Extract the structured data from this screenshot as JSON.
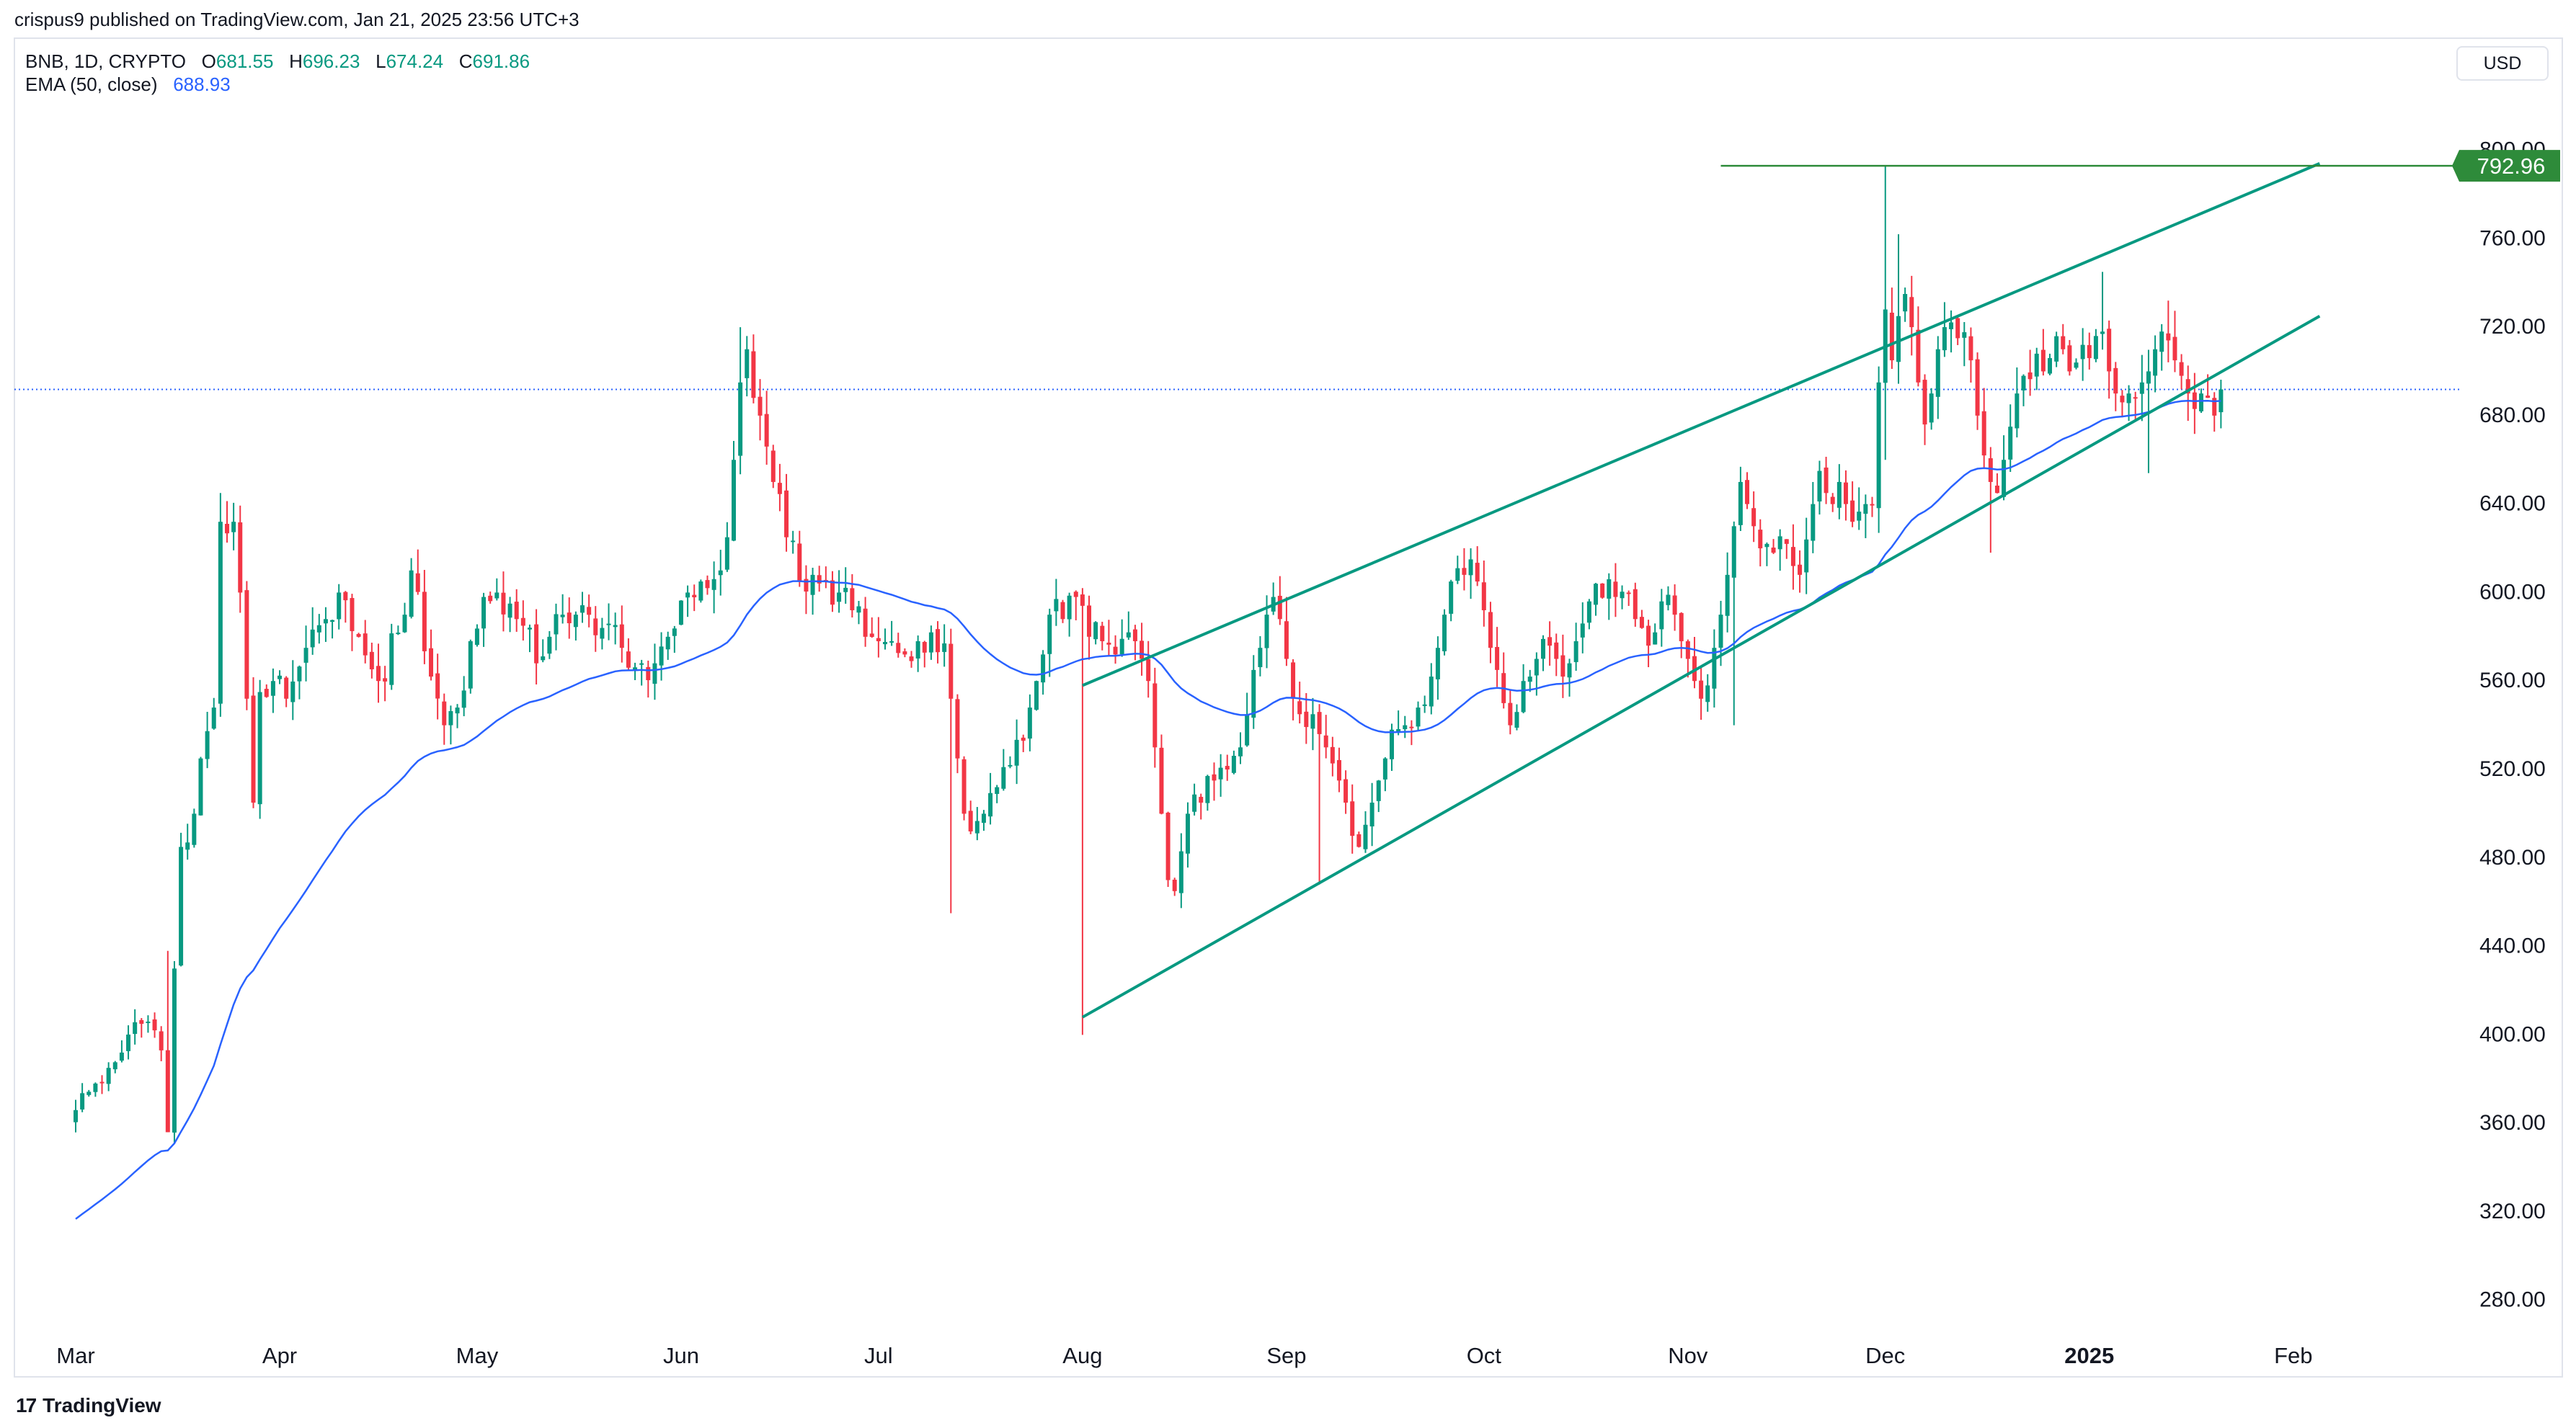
{
  "header": {
    "attribution": "crispus9 published on TradingView.com, Jan 21, 2025 23:56 UTC+3"
  },
  "legend": {
    "symbol": "BNB, 1D, CRYPTO",
    "open_label": "O",
    "open": "681.55",
    "high_label": "H",
    "high": "696.23",
    "low_label": "L",
    "low": "674.24",
    "close_label": "C",
    "close": "691.86",
    "ema_label": "EMA (50, close)",
    "ema_value": "688.93"
  },
  "currency": "USD",
  "footer": {
    "brand": "TradingView",
    "logo_glyph": "17"
  },
  "colors": {
    "up": "#089981",
    "down": "#f23645",
    "ema": "#2962ff",
    "trend": "#089981",
    "target": "#2e8b3a",
    "last_price": "#2962ff",
    "grid": "#e0e3eb"
  },
  "chart_data": {
    "type": "candlestick",
    "symbol": "BNB",
    "timeframe": "1D",
    "y_ticks": [
      280,
      320,
      360,
      400,
      440,
      480,
      520,
      560,
      600,
      640,
      680,
      720,
      760,
      800
    ],
    "y_tick_labels": [
      "280.00",
      "320.00",
      "360.00",
      "400.00",
      "440.00",
      "480.00",
      "520.00",
      "560.00",
      "600.00",
      "640.00",
      "680.00",
      "720.00",
      "760.00",
      "800.00"
    ],
    "ylim": [
      262,
      850
    ],
    "x_labels": [
      "Mar",
      "Apr",
      "May",
      "Jun",
      "Jul",
      "Aug",
      "Sep",
      "Oct",
      "Nov",
      "Dec",
      "2025",
      "Feb"
    ],
    "x_label_days": [
      0,
      31,
      61,
      92,
      122,
      153,
      184,
      214,
      245,
      275,
      306,
      337
    ],
    "first_candle_day": 0,
    "last_candle_day": 326,
    "close_anchors": [
      [
        0,
        366
      ],
      [
        3,
        378
      ],
      [
        7,
        392
      ],
      [
        10,
        405
      ],
      [
        13,
        393
      ],
      [
        14,
        356
      ],
      [
        15,
        430
      ],
      [
        16,
        485
      ],
      [
        18,
        500
      ],
      [
        19,
        525
      ],
      [
        21,
        548
      ],
      [
        22,
        632
      ],
      [
        24,
        632
      ],
      [
        25,
        600
      ],
      [
        26,
        552
      ],
      [
        27,
        505
      ],
      [
        28,
        555
      ],
      [
        30,
        560
      ],
      [
        32,
        552
      ],
      [
        35,
        575
      ],
      [
        38,
        588
      ],
      [
        40,
        600
      ],
      [
        43,
        580
      ],
      [
        46,
        560
      ],
      [
        50,
        590
      ],
      [
        51,
        610
      ],
      [
        54,
        562
      ],
      [
        56,
        540
      ],
      [
        58,
        548
      ],
      [
        60,
        578
      ],
      [
        62,
        598
      ],
      [
        64,
        600
      ],
      [
        66,
        595
      ],
      [
        67,
        588
      ],
      [
        68,
        585
      ],
      [
        70,
        568
      ],
      [
        72,
        580
      ],
      [
        74,
        590
      ],
      [
        76,
        590
      ],
      [
        80,
        584
      ],
      [
        83,
        575
      ],
      [
        86,
        568
      ],
      [
        88,
        568
      ],
      [
        90,
        580
      ],
      [
        93,
        600
      ],
      [
        95,
        605
      ],
      [
        96,
        602
      ],
      [
        98,
        610
      ],
      [
        99,
        625
      ],
      [
        100,
        660
      ],
      [
        101,
        695
      ],
      [
        102,
        710
      ],
      [
        103,
        688
      ],
      [
        104,
        680
      ],
      [
        105,
        666
      ],
      [
        106,
        650
      ],
      [
        108,
        625
      ],
      [
        110,
        605
      ],
      [
        112,
        608
      ],
      [
        114,
        605
      ],
      [
        116,
        600
      ],
      [
        118,
        592
      ],
      [
        120,
        580
      ],
      [
        122,
        578
      ],
      [
        124,
        578
      ],
      [
        126,
        572
      ],
      [
        128,
        578
      ],
      [
        130,
        582
      ],
      [
        132,
        577
      ],
      [
        133,
        552
      ],
      [
        134,
        525
      ],
      [
        135,
        500
      ],
      [
        136,
        492
      ],
      [
        138,
        500
      ],
      [
        140,
        512
      ],
      [
        142,
        522
      ],
      [
        144,
        533
      ],
      [
        145,
        548
      ],
      [
        146,
        560
      ],
      [
        147,
        572
      ],
      [
        148,
        590
      ],
      [
        150,
        588
      ],
      [
        152,
        598
      ],
      [
        153,
        594
      ],
      [
        154,
        580
      ],
      [
        156,
        578
      ],
      [
        158,
        572
      ],
      [
        160,
        582
      ],
      [
        161,
        578
      ],
      [
        162,
        570
      ],
      [
        163,
        560
      ],
      [
        164,
        530
      ],
      [
        165,
        500
      ],
      [
        166,
        470
      ],
      [
        167,
        465
      ],
      [
        168,
        483
      ],
      [
        169,
        500
      ],
      [
        171,
        505
      ],
      [
        173,
        515
      ],
      [
        175,
        520
      ],
      [
        177,
        530
      ],
      [
        178,
        545
      ],
      [
        179,
        565
      ],
      [
        180,
        575
      ],
      [
        181,
        590
      ],
      [
        182,
        598
      ],
      [
        183,
        588
      ],
      [
        184,
        570
      ],
      [
        185,
        552
      ],
      [
        186,
        545
      ],
      [
        188,
        545
      ],
      [
        189,
        536
      ],
      [
        190,
        530
      ],
      [
        192,
        515
      ],
      [
        193,
        505
      ],
      [
        194,
        490
      ],
      [
        195,
        485
      ],
      [
        196,
        495
      ],
      [
        197,
        505
      ],
      [
        198,
        515
      ],
      [
        199,
        525
      ],
      [
        200,
        538
      ],
      [
        202,
        540
      ],
      [
        204,
        548
      ],
      [
        206,
        562
      ],
      [
        207,
        575
      ],
      [
        208,
        590
      ],
      [
        209,
        605
      ],
      [
        210,
        611
      ],
      [
        211,
        608
      ],
      [
        212,
        615
      ],
      [
        213,
        605
      ],
      [
        214,
        592
      ],
      [
        215,
        575
      ],
      [
        216,
        565
      ],
      [
        217,
        550
      ],
      [
        218,
        540
      ],
      [
        219,
        546
      ],
      [
        220,
        560
      ],
      [
        222,
        570
      ],
      [
        224,
        576
      ],
      [
        225,
        570
      ],
      [
        226,
        562
      ],
      [
        227,
        568
      ],
      [
        228,
        578
      ],
      [
        229,
        586
      ],
      [
        230,
        596
      ],
      [
        231,
        604
      ],
      [
        233,
        606
      ],
      [
        234,
        598
      ],
      [
        236,
        600
      ],
      [
        237,
        588
      ],
      [
        238,
        584
      ],
      [
        239,
        576
      ],
      [
        240,
        582
      ],
      [
        241,
        596
      ],
      [
        242,
        599
      ],
      [
        243,
        590
      ],
      [
        244,
        578
      ],
      [
        245,
        570
      ],
      [
        246,
        560
      ],
      [
        247,
        552
      ],
      [
        248,
        558
      ],
      [
        249,
        575
      ],
      [
        250,
        590
      ],
      [
        251,
        608
      ],
      [
        252,
        630
      ],
      [
        253,
        650
      ],
      [
        254,
        640
      ],
      [
        255,
        630
      ],
      [
        256,
        620
      ],
      [
        257,
        622
      ],
      [
        258,
        618
      ],
      [
        260,
        622
      ],
      [
        261,
        612
      ],
      [
        262,
        608
      ],
      [
        263,
        624
      ],
      [
        264,
        640
      ],
      [
        265,
        655
      ],
      [
        266,
        645
      ],
      [
        267,
        640
      ],
      [
        268,
        650
      ],
      [
        269,
        640
      ],
      [
        270,
        632
      ],
      [
        272,
        640
      ],
      [
        273,
        640
      ],
      [
        274,
        695
      ],
      [
        275,
        728
      ],
      [
        276,
        705
      ],
      [
        277,
        725
      ],
      [
        278,
        735
      ],
      [
        279,
        720
      ],
      [
        280,
        695
      ],
      [
        281,
        676
      ],
      [
        282,
        690
      ],
      [
        283,
        710
      ],
      [
        284,
        720
      ],
      [
        286,
        715
      ],
      [
        288,
        705
      ],
      [
        289,
        680
      ],
      [
        290,
        662
      ],
      [
        291,
        650
      ],
      [
        292,
        645
      ],
      [
        293,
        660
      ],
      [
        294,
        675
      ],
      [
        295,
        690
      ],
      [
        296,
        698
      ],
      [
        298,
        708
      ],
      [
        299,
        700
      ],
      [
        300,
        706
      ],
      [
        302,
        710
      ],
      [
        303,
        700
      ],
      [
        304,
        704
      ],
      [
        305,
        712
      ],
      [
        306,
        706
      ],
      [
        307,
        716
      ],
      [
        308,
        718
      ],
      [
        309,
        700
      ],
      [
        310,
        690
      ],
      [
        311,
        686
      ],
      [
        312,
        690
      ],
      [
        314,
        695
      ],
      [
        315,
        700
      ],
      [
        316,
        710
      ],
      [
        317,
        718
      ],
      [
        318,
        714
      ],
      [
        319,
        705
      ],
      [
        320,
        698
      ],
      [
        321,
        690
      ],
      [
        322,
        683
      ],
      [
        323,
        690
      ],
      [
        324,
        688
      ],
      [
        325,
        680
      ],
      [
        326,
        692
      ]
    ],
    "pivot_candles": [
      {
        "day": 14,
        "low": 356,
        "high": 438
      },
      {
        "day": 22,
        "high": 645
      },
      {
        "day": 101,
        "high": 720
      },
      {
        "day": 102,
        "high": 716
      },
      {
        "day": 133,
        "low": 455
      },
      {
        "day": 153,
        "low": 400,
        "high": 602
      },
      {
        "day": 184,
        "high": 598
      },
      {
        "day": 189,
        "low": 468
      },
      {
        "day": 212,
        "high": 620
      },
      {
        "day": 252,
        "low": 540
      },
      {
        "day": 275,
        "high": 793,
        "low": 660
      },
      {
        "day": 277,
        "high": 762
      },
      {
        "day": 291,
        "low": 618
      },
      {
        "day": 308,
        "high": 745
      },
      {
        "day": 315,
        "low": 654
      },
      {
        "day": 318,
        "high": 732
      },
      {
        "day": 326,
        "open": 681.55,
        "high": 696.23,
        "low": 674.24,
        "close": 691.86
      }
    ],
    "ema_50": {
      "last": 688.93
    },
    "trendlines": [
      {
        "name": "upper",
        "points": [
          [
            153,
            558
          ],
          [
            341,
            794
          ]
        ]
      },
      {
        "name": "lower",
        "points": [
          [
            153,
            408
          ],
          [
            341,
            725
          ]
        ]
      }
    ],
    "horizontal_level": {
      "value": 792.96,
      "label": "792.96",
      "from_day": 250
    },
    "last_price_line": 691.86,
    "grid": false,
    "log_scale": false
  }
}
